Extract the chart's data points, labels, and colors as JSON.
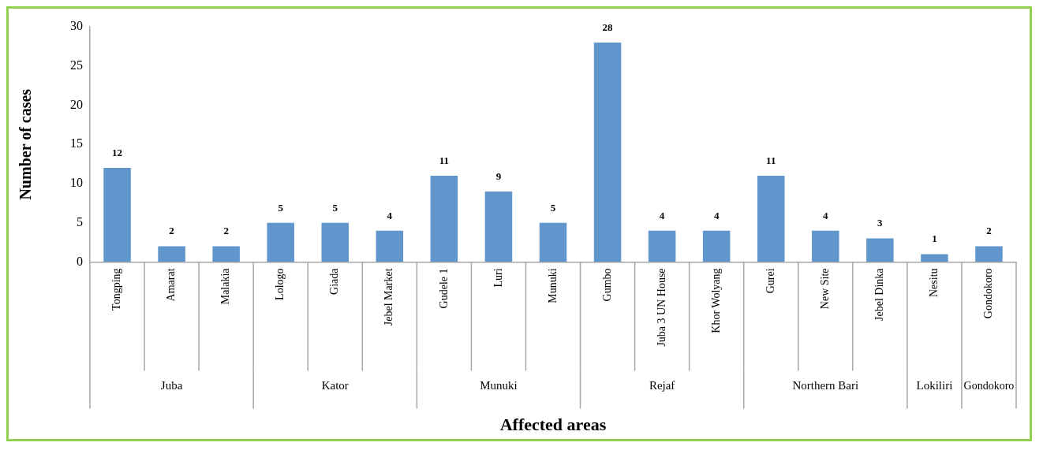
{
  "chart_data": {
    "type": "bar",
    "xlabel": "Affected areas",
    "ylabel": "Number of cases",
    "categories": [
      "Tongping",
      "Amarat",
      "Malakia",
      "Lologo",
      "Giada",
      "Jebel Market",
      "Gudele 1",
      "Luri",
      "Munuki",
      "Gumbo",
      "Juba 3 UN House",
      "Khor Wolyang",
      "Gurei",
      "New Site",
      "Jebel Dinka",
      "Nesitu",
      "Gondokoro"
    ],
    "values": [
      12,
      2,
      2,
      5,
      5,
      4,
      11,
      9,
      5,
      28,
      4,
      4,
      11,
      4,
      3,
      1,
      2
    ],
    "color": "#6196cc",
    "ylim": [
      0,
      30
    ],
    "yticks": [
      0,
      5,
      10,
      15,
      20,
      25,
      30
    ],
    "grid": false,
    "legend": false,
    "data_labels": true,
    "annotations": [
      "Juba",
      "Kator",
      "Munuki",
      "Rejaf",
      "Northern Bari",
      "Lokiliri",
      "Gondokoro"
    ]
  }
}
